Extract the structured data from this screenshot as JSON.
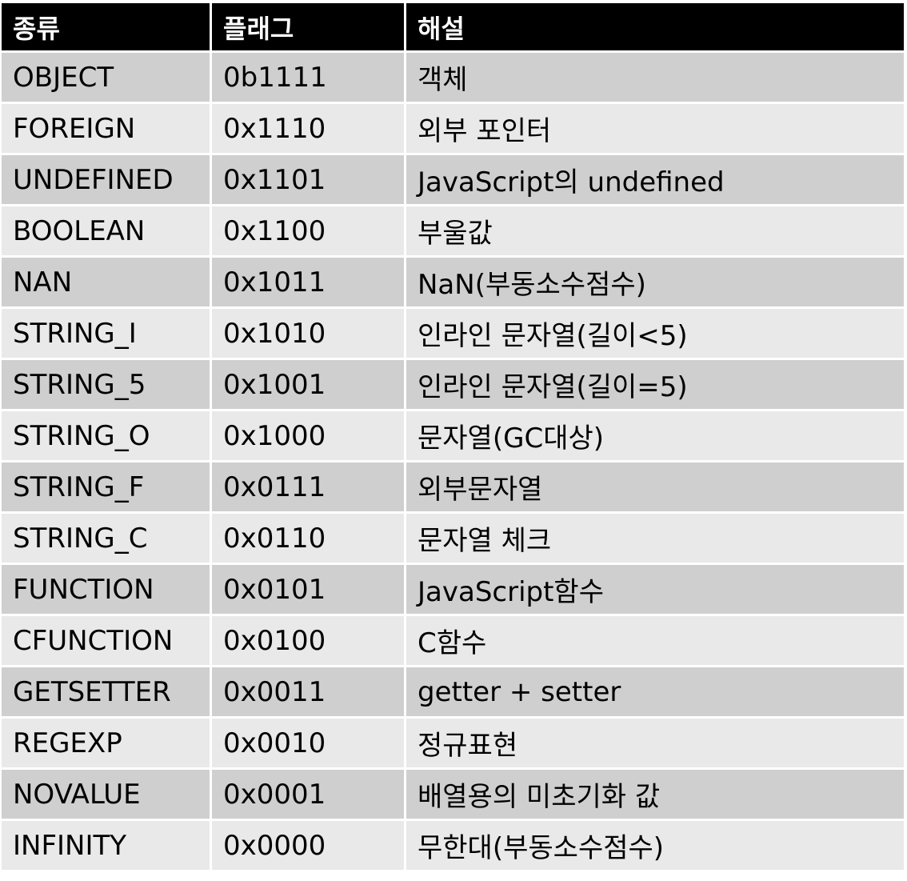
{
  "table": {
    "headers": [
      "종류",
      "플래그",
      "해설"
    ],
    "rows": [
      [
        "OBJECT",
        "0b1111",
        "객체"
      ],
      [
        "FOREIGN",
        "0x1110",
        "외부 포인터"
      ],
      [
        "UNDEFINED",
        "0x1101",
        "JavaScript의 undefined"
      ],
      [
        "BOOLEAN",
        "0x1100",
        "부울값"
      ],
      [
        "NAN",
        "0x1011",
        "NaN(부동소수점수)"
      ],
      [
        "STRING_I",
        "0x1010",
        "인라인 문자열(길이<5)"
      ],
      [
        "STRING_5",
        "0x1001",
        "인라인 문자열(길이=5)"
      ],
      [
        "STRING_O",
        "0x1000",
        "문자열(GC대상)"
      ],
      [
        "STRING_F",
        "0x0111",
        "외부문자열"
      ],
      [
        "STRING_C",
        "0x0110",
        "문자열 체크"
      ],
      [
        "FUNCTION",
        "0x0101",
        "JavaScript함수"
      ],
      [
        "CFUNCTION",
        "0x0100",
        "C함수"
      ],
      [
        "GETSETTER",
        "0x0011",
        "getter + setter"
      ],
      [
        "REGEXP",
        "0x0010",
        "정규표현"
      ],
      [
        "NOVALUE",
        "0x0001",
        "배열용의 미초기화 값"
      ],
      [
        "INFINITY",
        "0x0000",
        "무한대(부동소수점수)"
      ]
    ]
  },
  "colors": {
    "header_bg": "#000000",
    "header_text": "#ffffff",
    "row_odd_bg": "#cfcfcf",
    "row_even_bg": "#e9e9e9"
  }
}
